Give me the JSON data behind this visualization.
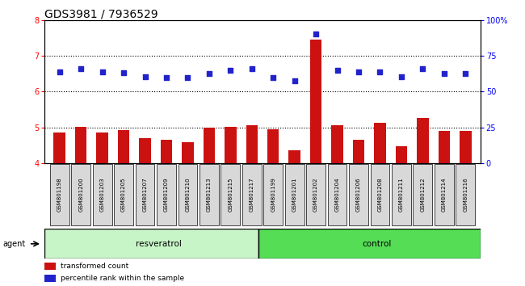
{
  "title": "GDS3981 / 7936529",
  "samples": [
    "GSM801198",
    "GSM801200",
    "GSM801203",
    "GSM801205",
    "GSM801207",
    "GSM801209",
    "GSM801210",
    "GSM801213",
    "GSM801215",
    "GSM801217",
    "GSM801199",
    "GSM801201",
    "GSM801202",
    "GSM801204",
    "GSM801206",
    "GSM801208",
    "GSM801211",
    "GSM801212",
    "GSM801214",
    "GSM801216"
  ],
  "bar_values": [
    4.85,
    5.02,
    4.85,
    4.92,
    4.7,
    4.65,
    4.58,
    4.98,
    5.02,
    5.05,
    4.95,
    4.35,
    7.45,
    5.05,
    4.65,
    5.12,
    4.48,
    5.25,
    4.9,
    4.9
  ],
  "dot_values": [
    6.55,
    6.65,
    6.55,
    6.52,
    6.42,
    6.38,
    6.38,
    6.5,
    6.6,
    6.65,
    6.38,
    6.3,
    7.6,
    6.6,
    6.55,
    6.55,
    6.42,
    6.65,
    6.5,
    6.5
  ],
  "bar_color": "#cc1111",
  "dot_color": "#2222cc",
  "ylim_left": [
    4.0,
    8.0
  ],
  "ylim_right": [
    0,
    100
  ],
  "yticks_left": [
    4,
    5,
    6,
    7,
    8
  ],
  "yticks_right": [
    0,
    25,
    50,
    75,
    100
  ],
  "ytick_labels_right": [
    "0",
    "25",
    "50",
    "75",
    "100%"
  ],
  "group1_label": "resveratrol",
  "group2_label": "control",
  "group1_count": 10,
  "group2_count": 10,
  "agent_label": "agent",
  "legend_bar_label": "transformed count",
  "legend_dot_label": "percentile rank within the sample",
  "title_fontsize": 10,
  "tick_fontsize": 7,
  "label_fontsize": 7.5,
  "group_color_1": "#c8f5c8",
  "group_color_2": "#55dd55",
  "dotted_grid_values": [
    5,
    6,
    7
  ],
  "box_facecolor": "#d8d8d8"
}
